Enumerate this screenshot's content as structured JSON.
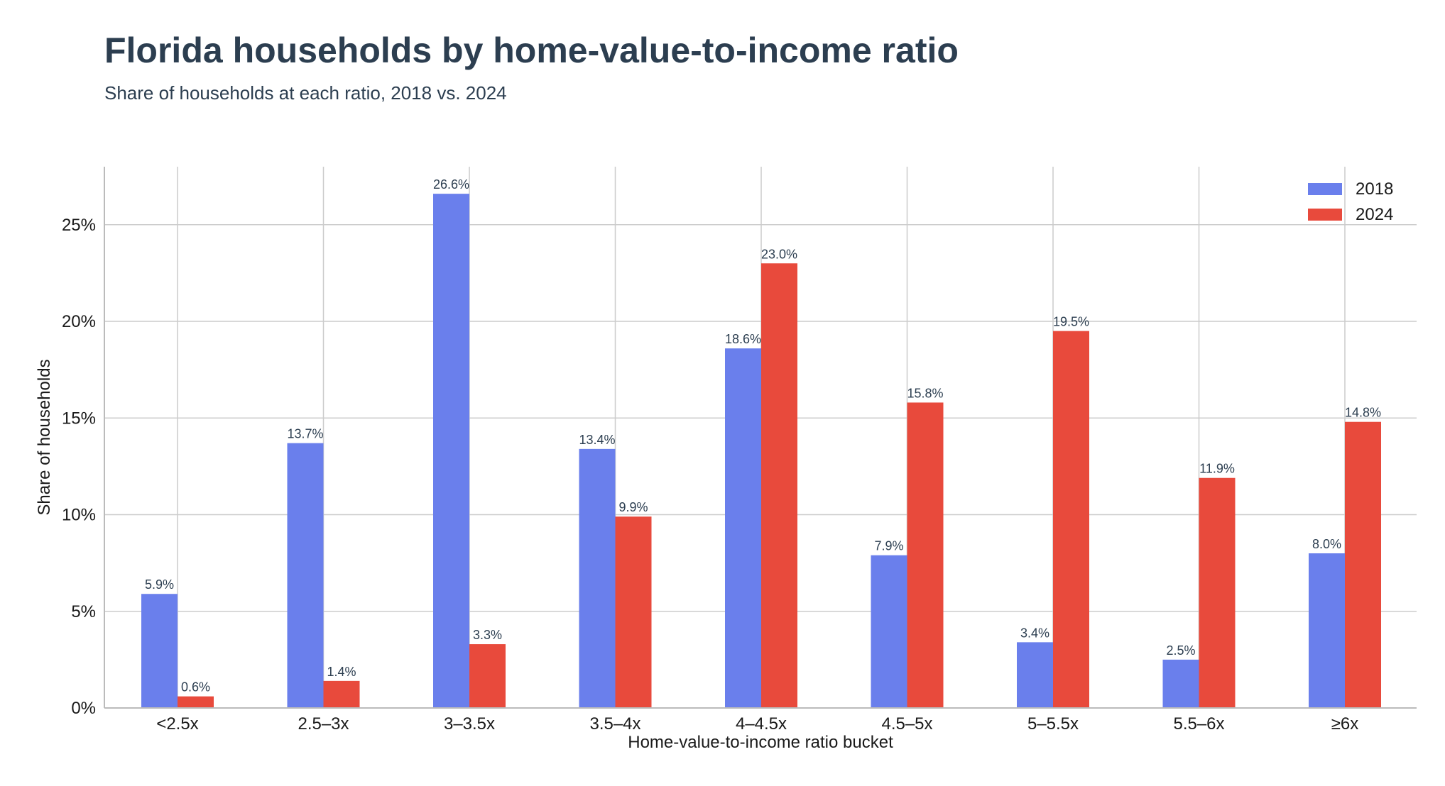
{
  "chart_data": {
    "type": "bar",
    "title": "Florida households by home-value-to-income ratio",
    "subtitle": "Share of households at each ratio, 2018 vs. 2024",
    "xlabel": "Home-value-to-income ratio bucket",
    "ylabel": "Share of households",
    "categories": [
      "<2.5x",
      "2.5–3x",
      "3–3.5x",
      "3.5–4x",
      "4–4.5x",
      "4.5–5x",
      "5–5.5x",
      "5.5–6x",
      "≥6x"
    ],
    "series": [
      {
        "name": "2018",
        "color": "#6a7fec",
        "values": [
          5.9,
          13.7,
          26.6,
          13.4,
          18.6,
          7.9,
          3.4,
          2.5,
          8.0
        ]
      },
      {
        "name": "2024",
        "color": "#e84a3c",
        "values": [
          0.6,
          1.4,
          3.3,
          9.9,
          23.0,
          15.8,
          19.5,
          11.9,
          14.8
        ]
      }
    ],
    "ylim": [
      0,
      28
    ],
    "yticks": [
      0,
      5,
      10,
      15,
      20,
      25
    ],
    "ytick_format": "%",
    "grid": true,
    "legend_position": "top-right"
  }
}
